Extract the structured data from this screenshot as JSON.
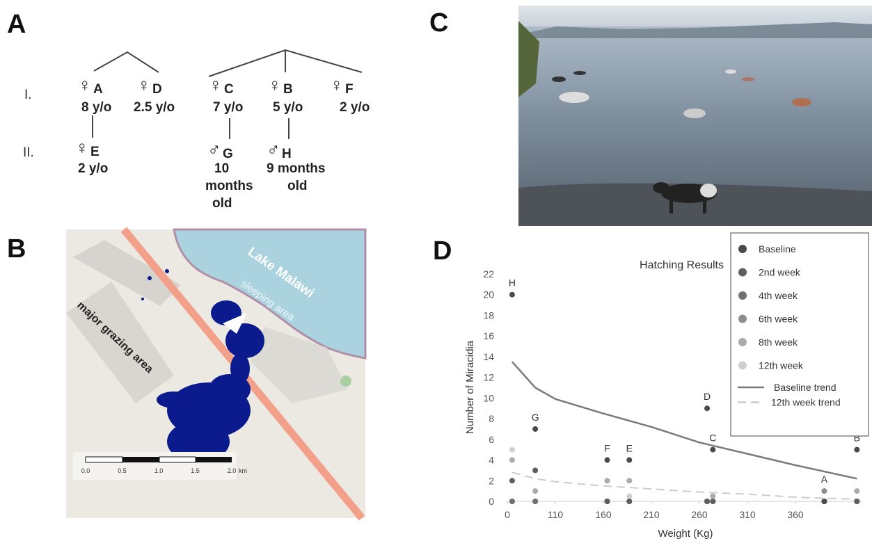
{
  "panels": {
    "a": "A",
    "b": "B",
    "c": "C",
    "d": "D"
  },
  "pedigree": {
    "generations": [
      "I.",
      "II."
    ],
    "nodes": [
      {
        "symbol": "♀",
        "label": "A",
        "age": [
          "8 y/o"
        ]
      },
      {
        "symbol": "♀",
        "label": "D",
        "age": [
          "2.5 y/o"
        ]
      },
      {
        "symbol": "♀",
        "label": "C",
        "age": [
          "7 y/o"
        ]
      },
      {
        "symbol": "♀",
        "label": "B",
        "age": [
          "5 y/o"
        ]
      },
      {
        "symbol": "♀",
        "label": "F",
        "age": [
          "2 y/o"
        ]
      },
      {
        "symbol": "♀",
        "label": "E",
        "age": [
          "2 y/o"
        ]
      },
      {
        "symbol": "♂",
        "label": "G",
        "age": [
          "10",
          "months",
          "old"
        ]
      },
      {
        "symbol": "♂",
        "label": "H",
        "age": [
          "9 months",
          "old"
        ]
      }
    ]
  },
  "map": {
    "lake": "Lake Malawi",
    "sleeping": "sleeping area",
    "grazing": "major grazing area",
    "scale": [
      "0.0",
      "0.5",
      "1.0",
      "1.5",
      "2.0"
    ],
    "unit": "km"
  },
  "chart_data": {
    "type": "scatter",
    "title": "Hatching Results",
    "x_label": "Weight (Kg)",
    "y_label": "Number of Miracidia",
    "x": [
      11,
      64,
      164,
      187,
      268,
      274,
      390,
      424
    ],
    "point_labels": [
      "H",
      "G",
      "F",
      "E",
      "D",
      "C",
      "A",
      "B"
    ],
    "series": [
      {
        "name": "Baseline",
        "color": "#4a4a4a",
        "values": [
          20,
          7,
          4,
          4,
          9,
          5,
          0,
          5
        ]
      },
      {
        "name": "2nd week",
        "color": "#5e5e5e",
        "values": [
          2,
          3,
          0,
          0,
          0,
          0,
          0,
          0
        ]
      },
      {
        "name": "4th week",
        "color": "#707070",
        "values": [
          0,
          0,
          0,
          0,
          0,
          0,
          0,
          0
        ]
      },
      {
        "name": "6th week",
        "color": "#8e8e8e",
        "values": [
          0,
          0,
          0,
          0,
          0,
          0,
          1,
          0
        ]
      },
      {
        "name": "8th week",
        "color": "#ababab",
        "values": [
          4,
          1,
          2,
          2,
          0,
          0.5,
          0,
          1
        ]
      },
      {
        "name": "12th week",
        "color": "#cfcfcf",
        "values": [
          5,
          0,
          0,
          0.5,
          0,
          0,
          0,
          0
        ]
      }
    ],
    "trends": [
      {
        "name": "Baseline trend",
        "color": "#7a7a7a",
        "dashed": false,
        "x": [
          11,
          64,
          110,
          160,
          210,
          260,
          310,
          360,
          424
        ],
        "values": [
          13.5,
          11,
          9.9,
          8.5,
          7.2,
          5.7,
          4.6,
          3.5,
          2.2
        ]
      },
      {
        "name": "12th week trend",
        "color": "#cccccc",
        "dashed": true,
        "x": [
          11,
          64,
          110,
          160,
          210,
          260,
          310,
          360,
          424
        ],
        "values": [
          2.8,
          2.2,
          1.9,
          1.5,
          1.2,
          0.9,
          0.7,
          0.4,
          0.2
        ]
      }
    ],
    "xlim": [
      0,
      430
    ],
    "xticks": [
      0,
      110,
      160,
      210,
      260,
      310,
      360
    ],
    "ylim": [
      0,
      22
    ],
    "yticks": [
      0,
      2,
      4,
      6,
      8,
      10,
      12,
      14,
      16,
      18,
      20,
      22
    ],
    "grid": false,
    "legend": "upper right"
  }
}
